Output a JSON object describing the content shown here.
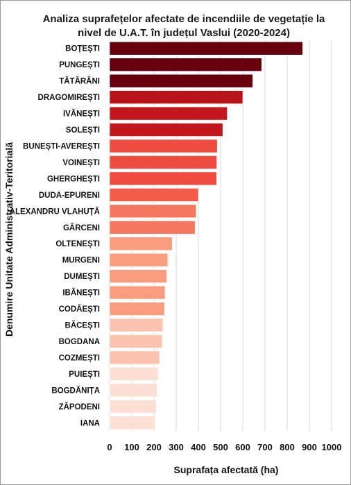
{
  "chart_data": {
    "type": "bar",
    "orientation": "horizontal",
    "title_lines": [
      "Analiza suprafețelor afectate de incendiile de vegetație la",
      "nivel de U.A.T. în județul Vaslui (2020-2024)"
    ],
    "xlabel": "Suprafața afectată (ha)",
    "ylabel": "Denumire Unitate Administrativ-Teritorială",
    "xlim": [
      0,
      1000
    ],
    "xticks": [
      0,
      100,
      200,
      300,
      400,
      500,
      600,
      700,
      800,
      900,
      1000
    ],
    "grid": "vertical",
    "categories": [
      "BOȚEȘTI",
      "PUNGEȘTI",
      "TĂTĂRĂNI",
      "DRAGOMIREȘTI",
      "IVĂNEȘTI",
      "SOLEȘTI",
      "BUNEȘTI-AVEREȘTI",
      "VOINEȘTI",
      "GHERGHEȘTI",
      "DUDA-EPURENI",
      "ALEXANDRU VLAHUȚĂ",
      "GÂRCENI",
      "OLTENEȘTI",
      "MURGENI",
      "DUMEȘTI",
      "IBĂNEȘTI",
      "CODĂEȘTI",
      "BĂCEȘTI",
      "BOGDANA",
      "COZMEȘTI",
      "PUIEȘTI",
      "BOGDĂNIȚA",
      "ZĂPODENI",
      "IANA"
    ],
    "values": [
      870,
      685,
      645,
      600,
      530,
      510,
      485,
      483,
      482,
      400,
      390,
      385,
      282,
      262,
      258,
      250,
      247,
      240,
      237,
      225,
      218,
      214,
      210,
      205
    ],
    "colors": [
      "#67000d",
      "#67000d",
      "#67000d",
      "#b71319",
      "#c2181d",
      "#c2181d",
      "#ef4b3f",
      "#ef4b3f",
      "#ef4b3f",
      "#f25c48",
      "#f5785e",
      "#f5785e",
      "#fa9d7e",
      "#fa9d7e",
      "#fa9d7e",
      "#fa9d7e",
      "#fa9d7e",
      "#fcc3ae",
      "#fcc3ae",
      "#fcc3ae",
      "#fde0d3",
      "#fde0d3",
      "#fde0d3",
      "#fde0d3"
    ]
  }
}
